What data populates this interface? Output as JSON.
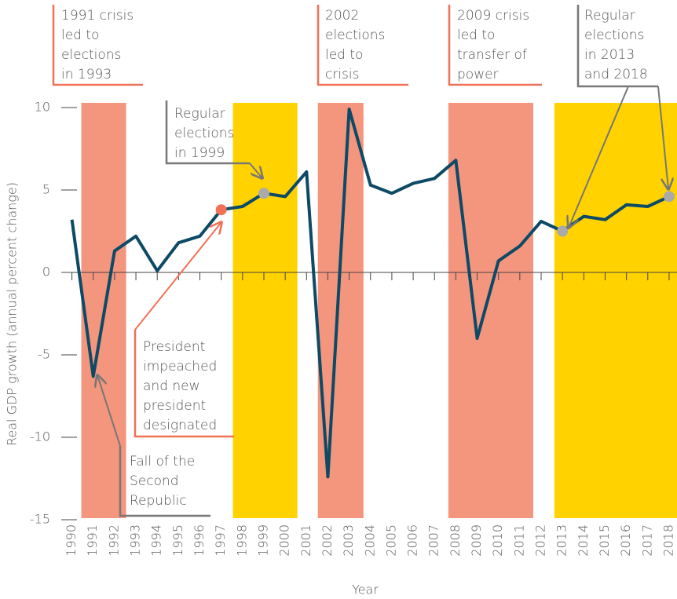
{
  "chart_data": {
    "type": "line",
    "x_label": "Year",
    "y_label": "Real GDP growth (annual percent change)",
    "x": [
      1990,
      1991,
      1992,
      1993,
      1994,
      1995,
      1996,
      1997,
      1998,
      1999,
      2000,
      2001,
      2002,
      2003,
      2004,
      2005,
      2006,
      2007,
      2008,
      2009,
      2010,
      2011,
      2012,
      2013,
      2014,
      2015,
      2016,
      2017,
      2018
    ],
    "series": [
      {
        "color": "#0d4a66",
        "values": [
          3.2,
          -6.3,
          1.3,
          2.2,
          0.1,
          1.8,
          2.2,
          3.8,
          4.0,
          4.8,
          4.6,
          6.1,
          -12.4,
          9.9,
          5.3,
          4.8,
          5.4,
          5.7,
          6.8,
          -4.0,
          0.7,
          1.6,
          3.1,
          2.5,
          3.4,
          3.2,
          4.1,
          4.0,
          4.6
        ]
      }
    ],
    "highlights": [
      {
        "x": 1997,
        "color": "#f07156"
      },
      {
        "x": 1999,
        "color": "#aaaaaa"
      },
      {
        "x": 2013,
        "color": "#aaaaaa"
      },
      {
        "x": 2018,
        "color": "#aaaaaa"
      }
    ],
    "bands": [
      {
        "x": [
          1990.44,
          1992.54
        ],
        "color": "#f4957e"
      },
      {
        "x": [
          1997.55,
          2000.57
        ],
        "color": "#ffd200"
      },
      {
        "x": [
          2001.53,
          2003.67
        ],
        "color": "#f4957e"
      },
      {
        "x": [
          2007.65,
          2011.63
        ],
        "color": "#f4957e"
      },
      {
        "x": [
          2012.62,
          2018.37
        ],
        "color": "#ffd200"
      }
    ],
    "xlim": [
      1989.5,
      2018.37
    ],
    "xticks": [
      1990,
      1991,
      1992,
      1993,
      1994,
      1995,
      1996,
      1997,
      1998,
      1999,
      2000,
      2001,
      2002,
      2003,
      2004,
      2005,
      2006,
      2007,
      2008,
      2009,
      2010,
      2011,
      2012,
      2013,
      2014,
      2015,
      2016,
      2017,
      2018
    ],
    "ylim": [
      -15,
      10
    ],
    "yticks": [
      -15,
      -10,
      -5,
      0,
      5,
      10
    ],
    "annotations": [
      {
        "lines": [
          "1991 crisis",
          "led to",
          "elections",
          "in 1993"
        ],
        "color": "#f07156"
      },
      {
        "lines": [
          "2002",
          "elections",
          "led to",
          "crisis"
        ],
        "color": "#f07156"
      },
      {
        "lines": [
          "2009 crisis",
          "led to",
          "transfer of",
          "power"
        ],
        "color": "#f07156"
      },
      {
        "lines": [
          "Regular",
          "elections",
          "in 2013",
          "and 2018"
        ],
        "color": "#777777"
      },
      {
        "lines": [
          "Regular",
          "elections",
          "in 1999"
        ],
        "color": "#777777"
      },
      {
        "lines": [
          "President",
          "impeached",
          "and new",
          "president",
          "designated"
        ],
        "color": "#f07156"
      },
      {
        "lines": [
          "Fall of the",
          "Second",
          "Republic"
        ],
        "color": "#777777"
      }
    ]
  }
}
